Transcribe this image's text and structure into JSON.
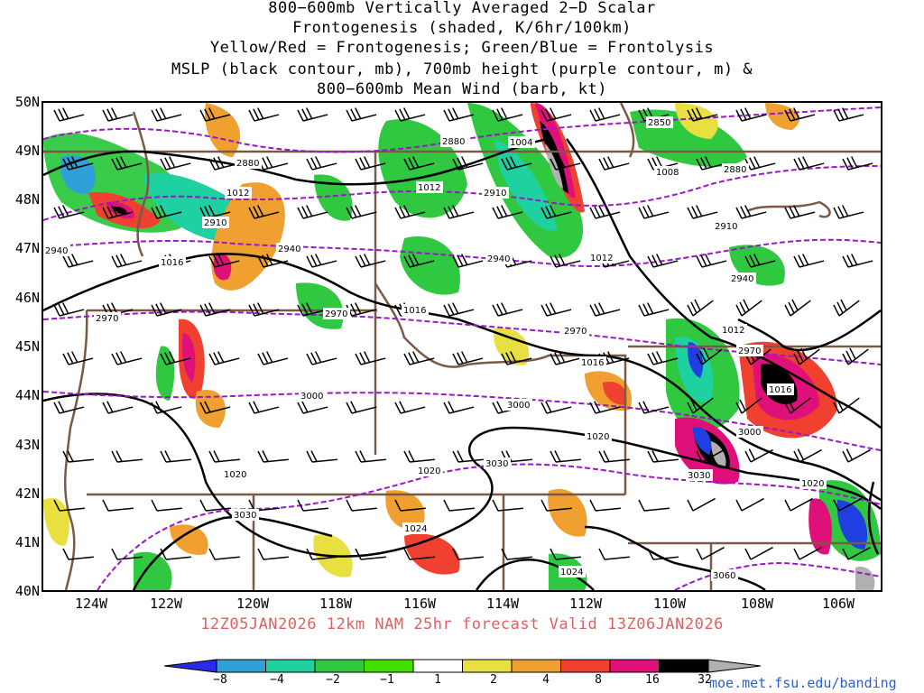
{
  "title_lines": [
    "800−600mb Vertically Averaged 2−D Scalar",
    "Frontogenesis (shaded, K/6hr/100km)",
    "Yellow/Red = Frontogenesis;  Green/Blue = Frontolysis",
    "MSLP (black contour, mb), 700mb height (purple contour, m) &",
    "800−600mb Mean Wind (barb, kt)"
  ],
  "lat_labels": [
    "50N",
    "49N",
    "48N",
    "47N",
    "46N",
    "45N",
    "44N",
    "43N",
    "42N",
    "41N",
    "40N"
  ],
  "lon_labels": [
    "124W",
    "122W",
    "120W",
    "118W",
    "116W",
    "114W",
    "112W",
    "110W",
    "108W",
    "106W"
  ],
  "valid_line": "12Z05JAN2026 12km NAM 25hr forecast Valid 13Z06JAN2026",
  "colorbar": {
    "labels": [
      "−8",
      "−4",
      "−2",
      "−1",
      "1",
      "2",
      "4",
      "8",
      "16",
      "32"
    ],
    "colors": [
      "#1f3fe0",
      "#2fa0d8",
      "#1fd0a0",
      "#30c840",
      "#44e000",
      "#ffffff",
      "#e8e040",
      "#f0a030",
      "#f04030",
      "#e0107a",
      "#000000",
      "#b0b0b0"
    ]
  },
  "contour_labels_mslp": [
    "1004",
    "1008",
    "1012",
    "1012",
    "1012",
    "1016",
    "1016",
    "1016",
    "1016",
    "1020",
    "1020",
    "1020",
    "1020",
    "1024",
    "1024"
  ],
  "contour_labels_height": [
    "2850",
    "2880",
    "2880",
    "2880",
    "2910",
    "2910",
    "2910",
    "2940",
    "2940",
    "2940",
    "2940",
    "2970",
    "2970",
    "2970",
    "2970",
    "3000",
    "3000",
    "3000",
    "3030",
    "3030",
    "3030",
    "3060"
  ],
  "url": "moe.met.fsu.edu/banding"
}
